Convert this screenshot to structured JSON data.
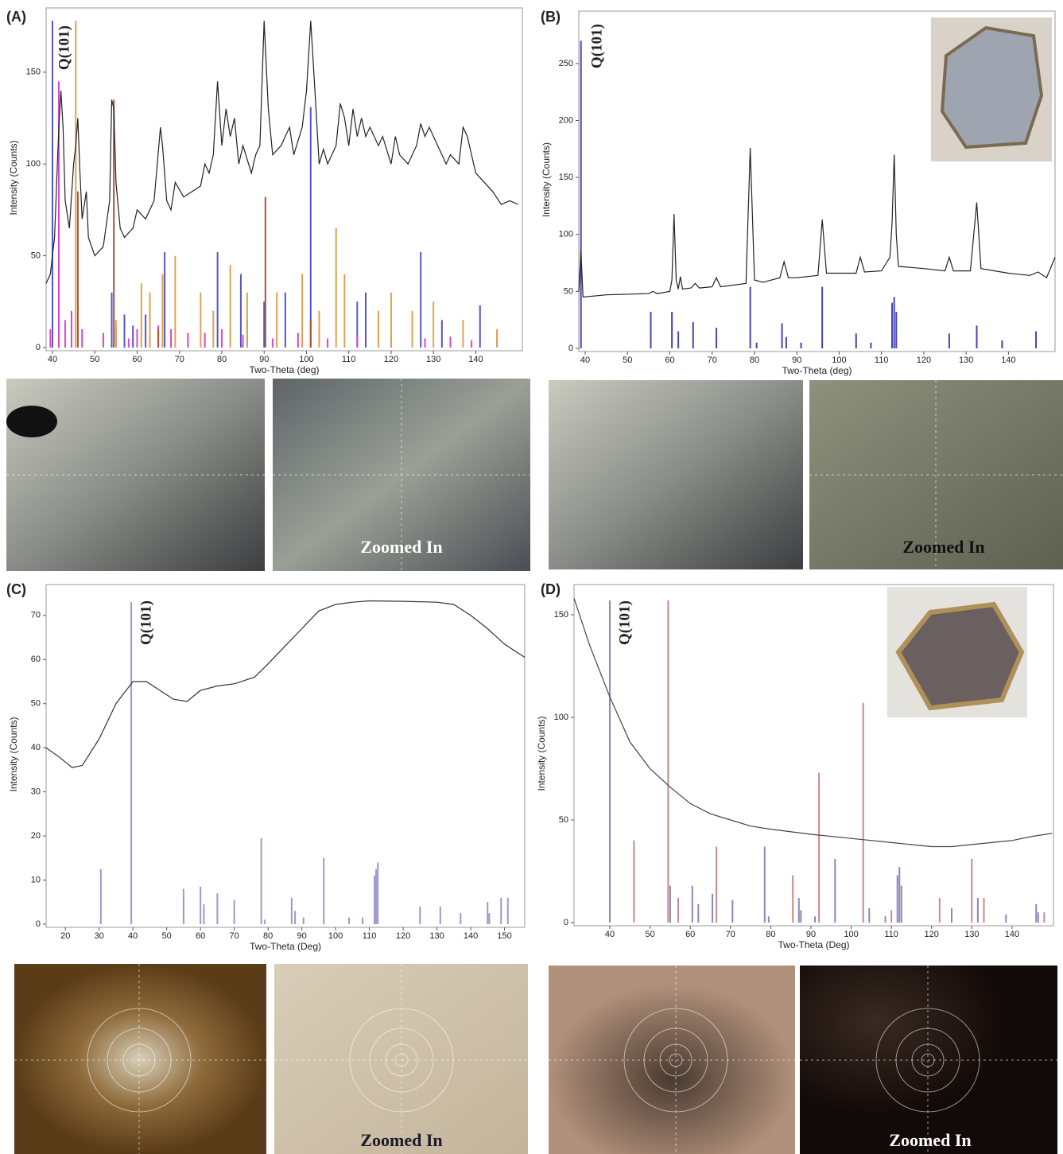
{
  "chart_data": [
    {
      "type": "line",
      "panel": "(A)",
      "annotation": "Q(101)",
      "x_label": "Two-Theta (deg)",
      "y_label": "Intensity (Counts)",
      "xlim": [
        38.5,
        151
      ],
      "ylim": [
        0,
        185
      ],
      "xticks": [
        40,
        50,
        60,
        70,
        80,
        90,
        100,
        110,
        120,
        130,
        140
      ],
      "yticks": [
        0,
        50,
        100,
        150
      ],
      "series": [
        {
          "color": "#222222",
          "x": [
            38.5,
            39.5,
            40.5,
            41.5,
            42,
            42.5,
            43,
            44,
            45,
            45.5,
            46,
            46.5,
            47,
            48,
            48.5,
            50,
            52,
            53.5,
            54,
            54.5,
            55,
            56,
            57,
            59,
            60,
            62,
            64,
            65.5,
            66,
            67,
            68,
            69,
            71,
            73,
            75,
            76,
            77,
            78,
            79,
            80,
            81,
            82,
            83,
            84,
            85,
            87,
            88,
            89,
            90,
            91,
            92,
            94,
            96,
            97,
            99,
            100,
            101,
            102,
            103,
            104,
            105,
            107,
            108,
            109,
            110,
            111,
            112,
            113,
            114,
            115,
            117,
            118,
            120,
            121,
            122,
            124,
            126,
            127,
            128,
            129,
            131,
            133,
            134,
            136,
            137,
            138,
            140,
            142,
            144,
            146,
            148,
            150
          ],
          "values": [
            35,
            40,
            60,
            120,
            140,
            120,
            80,
            65,
            100,
            110,
            125,
            95,
            70,
            85,
            60,
            50,
            55,
            80,
            135,
            130,
            90,
            65,
            60,
            65,
            75,
            70,
            80,
            120,
            110,
            80,
            75,
            90,
            82,
            85,
            88,
            100,
            95,
            105,
            145,
            110,
            130,
            115,
            125,
            100,
            110,
            95,
            105,
            110,
            178,
            130,
            105,
            110,
            120,
            105,
            120,
            140,
            178,
            140,
            100,
            108,
            100,
            110,
            133,
            125,
            110,
            130,
            115,
            125,
            115,
            120,
            110,
            115,
            100,
            115,
            105,
            100,
            110,
            122,
            115,
            120,
            110,
            100,
            105,
            100,
            120,
            115,
            95,
            90,
            85,
            78,
            80,
            78
          ]
        }
      ],
      "sticks": [
        {
          "color": "#5555cc",
          "x": [
            40,
            54,
            57,
            59,
            62,
            66.5,
            79,
            84.5,
            86,
            90,
            95,
            101,
            112,
            114,
            127,
            132,
            141,
            145
          ],
          "values": [
            178,
            30,
            18,
            12,
            18,
            52,
            52,
            40,
            15,
            25,
            30,
            131,
            25,
            30,
            52,
            15,
            23,
            5
          ]
        },
        {
          "color": "#dd44cc",
          "x": [
            39.5,
            41.5,
            43,
            44.5,
            47,
            52,
            55,
            58,
            60,
            63,
            65,
            68,
            72,
            76,
            80,
            85,
            92,
            98,
            105,
            112,
            120,
            128,
            134,
            139
          ],
          "values": [
            10,
            145,
            15,
            20,
            10,
            8,
            10,
            5,
            10,
            7,
            12,
            10,
            8,
            8,
            10,
            7,
            5,
            8,
            5,
            6,
            5,
            5,
            6,
            4
          ]
        },
        {
          "color": "#e0a050",
          "x": [
            45.5,
            55,
            61,
            63,
            66,
            69,
            75,
            78,
            82,
            86,
            93,
            99,
            103,
            107,
            109,
            117,
            120,
            125,
            130,
            137,
            145
          ],
          "values": [
            178,
            15,
            35,
            30,
            40,
            50,
            30,
            20,
            45,
            30,
            30,
            40,
            20,
            65,
            40,
            20,
            30,
            20,
            25,
            15,
            10
          ]
        },
        {
          "color": "#b05030",
          "x": [
            46,
            54.5,
            65,
            90.3,
            101
          ],
          "values": [
            85,
            135,
            10,
            82,
            15
          ]
        }
      ]
    },
    {
      "type": "line",
      "panel": "(B)",
      "annotation": "Q(101)",
      "x_label": "Two-Theta (deg)",
      "y_label": "Intensity (Counts)",
      "xlim": [
        38.5,
        151
      ],
      "ylim": [
        0,
        296
      ],
      "xticks": [
        40,
        50,
        60,
        70,
        80,
        90,
        100,
        110,
        120,
        130,
        140
      ],
      "yticks": [
        0,
        50,
        100,
        150,
        200,
        250
      ],
      "series": [
        {
          "color": "#222222",
          "x": [
            38.5,
            39,
            39.5,
            45,
            55,
            56,
            57,
            60,
            60.5,
            61,
            61.5,
            62,
            62.5,
            63,
            65,
            66,
            67,
            70,
            71,
            72,
            78,
            79,
            80,
            82,
            86,
            87,
            88,
            90,
            95,
            96,
            97,
            100,
            104,
            105,
            106,
            110,
            112,
            112.5,
            113,
            113.5,
            114,
            120,
            125,
            126,
            127,
            131,
            132.5,
            133.5,
            140,
            145,
            147,
            149,
            151
          ],
          "values": [
            50,
            85,
            45,
            47,
            48,
            50,
            48,
            50,
            60,
            118,
            60,
            52,
            63,
            52,
            53,
            57,
            53,
            54,
            62,
            54,
            57,
            176,
            60,
            58,
            62,
            76,
            62,
            62,
            64,
            113,
            66,
            66,
            66,
            80,
            67,
            68,
            80,
            110,
            170,
            100,
            72,
            70,
            68,
            80,
            68,
            68,
            128,
            70,
            66,
            64,
            67,
            62,
            80
          ]
        }
      ],
      "sticks": [
        {
          "color": "#4444bb",
          "x": [
            39,
            55.5,
            60.5,
            62,
            65.5,
            71,
            79,
            80.5,
            86.5,
            87.5,
            91,
            96,
            104,
            107.5,
            112.5,
            113,
            113.5,
            126,
            132.5,
            138.5,
            146.5
          ],
          "values": [
            270,
            32,
            32,
            15,
            23,
            18,
            54,
            5,
            22,
            10,
            5,
            54,
            13,
            5,
            40,
            45,
            32,
            13,
            20,
            7,
            15
          ]
        }
      ]
    },
    {
      "type": "line",
      "panel": "(C)",
      "annotation": "Q(101)",
      "x_label": "Two-Theta (Deg)",
      "y_label": "Intensity (Counts)",
      "xlim": [
        14.3,
        156
      ],
      "ylim": [
        0,
        77
      ],
      "xticks": [
        20,
        30,
        40,
        50,
        60,
        70,
        80,
        90,
        100,
        110,
        120,
        130,
        140,
        150
      ],
      "yticks": [
        0,
        10,
        20,
        30,
        40,
        50,
        60,
        70
      ],
      "series": [
        {
          "color": "#333333",
          "x": [
            14.3,
            18,
            22,
            25,
            30,
            35,
            40,
            44,
            48,
            52,
            56,
            60,
            65,
            70,
            76,
            80,
            85,
            90,
            95,
            100,
            105,
            110,
            120,
            130,
            135,
            140,
            145,
            150,
            156
          ],
          "values": [
            40,
            38,
            35.5,
            36,
            42,
            50,
            55,
            55,
            53,
            51,
            50.5,
            53,
            54,
            54.5,
            56,
            59,
            63,
            67,
            71,
            72.5,
            73,
            73.3,
            73.2,
            73,
            72.5,
            70,
            67,
            63.5,
            60.5
          ]
        }
      ],
      "sticks": [
        {
          "color": "#9999cc",
          "x": [
            30.5,
            39.5,
            55,
            60,
            61,
            65,
            70,
            78,
            79,
            87,
            88,
            90.5,
            96.5,
            104,
            108,
            111.5,
            112,
            112.5,
            125,
            131,
            137,
            145,
            145.5,
            149,
            151
          ],
          "values": [
            12.5,
            73,
            8,
            8.5,
            4.5,
            7,
            5.5,
            19.5,
            1,
            6,
            3,
            1.5,
            15,
            1.5,
            1.5,
            11,
            12.5,
            14,
            4,
            4,
            2.5,
            5,
            2.5,
            6,
            6
          ]
        }
      ]
    },
    {
      "type": "line",
      "panel": "(D)",
      "annotation": "Q(101)",
      "x_label": "Two-Theta (Deg)",
      "y_label": "Intensity (Counts)",
      "xlim": [
        31.1,
        150.3
      ],
      "ylim": [
        0,
        164.7
      ],
      "xticks": [
        40,
        50,
        60,
        70,
        80,
        90,
        100,
        110,
        120,
        130,
        140
      ],
      "yticks": [
        0,
        50,
        100,
        150
      ],
      "series": [
        {
          "color": "#444444",
          "x": [
            31.1,
            35,
            40,
            45,
            50,
            55,
            60,
            65,
            70,
            75,
            80,
            90,
            100,
            110,
            120,
            125,
            130,
            135,
            140,
            145,
            150
          ],
          "values": [
            158,
            135,
            110,
            88,
            75,
            66,
            58,
            53,
            50,
            47,
            45.5,
            43,
            41,
            39,
            37,
            37,
            38,
            39,
            40,
            42,
            43.5
          ]
        }
      ],
      "sticks": [
        {
          "color": "#8888bb",
          "x": [
            40,
            55,
            60.5,
            62,
            65.5,
            70.5,
            78.5,
            79.5,
            87,
            87.5,
            91,
            96,
            104.5,
            108.5,
            111.5,
            112,
            112.5,
            125,
            131.5,
            138.5,
            146,
            146.5
          ],
          "values": [
            157,
            18,
            18,
            9,
            14,
            11,
            37,
            3,
            12,
            6,
            3,
            31,
            7,
            3,
            23,
            27,
            18,
            7,
            12,
            4,
            9,
            5
          ]
        },
        {
          "color": "#cc8888",
          "x": [
            46,
            54.5,
            57,
            66.5,
            85.5,
            92,
            103,
            110,
            122,
            130,
            133,
            148
          ],
          "values": [
            40,
            157,
            12,
            37,
            23,
            73,
            107,
            6,
            12,
            31,
            12,
            5
          ]
        }
      ]
    }
  ],
  "photo_captions": [
    "Zoomed In",
    "Zoomed In",
    "Zoomed In",
    "Zoomed In"
  ]
}
